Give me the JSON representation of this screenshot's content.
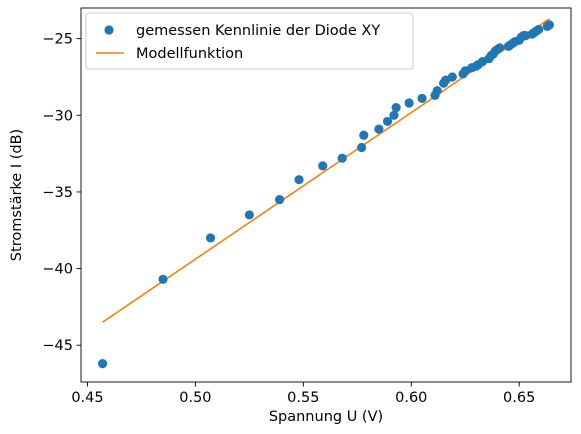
{
  "chart_data": {
    "type": "scatter",
    "xlabel": "Spannung U (V)",
    "ylabel": "Stromstärke I (dB)",
    "xlim": [
      0.447,
      0.674
    ],
    "ylim": [
      -47.4,
      -23.0
    ],
    "xticks": [
      0.45,
      0.5,
      0.55,
      0.6,
      0.65
    ],
    "xtick_labels": [
      "0.45",
      "0.50",
      "0.55",
      "0.60",
      "0.65"
    ],
    "yticks": [
      -45,
      -40,
      -35,
      -30,
      -25
    ],
    "ytick_labels": [
      "−45",
      "−40",
      "−35",
      "−30",
      "−25"
    ],
    "grid": false,
    "legend": {
      "position": "top-left"
    },
    "series": [
      {
        "name": "gemessen Kennlinie der Diode XY",
        "type": "scatter",
        "color": "#1f77b4",
        "points": [
          [
            0.457,
            -46.2
          ],
          [
            0.485,
            -40.7
          ],
          [
            0.507,
            -38.0
          ],
          [
            0.525,
            -36.5
          ],
          [
            0.539,
            -35.5
          ],
          [
            0.548,
            -34.2
          ],
          [
            0.559,
            -33.3
          ],
          [
            0.568,
            -32.8
          ],
          [
            0.577,
            -32.1
          ],
          [
            0.578,
            -31.3
          ],
          [
            0.585,
            -30.9
          ],
          [
            0.589,
            -30.4
          ],
          [
            0.592,
            -30.0
          ],
          [
            0.593,
            -29.5
          ],
          [
            0.599,
            -29.2
          ],
          [
            0.605,
            -28.9
          ],
          [
            0.611,
            -28.7
          ],
          [
            0.612,
            -28.4
          ],
          [
            0.615,
            -27.9
          ],
          [
            0.616,
            -27.7
          ],
          [
            0.619,
            -27.5
          ],
          [
            0.624,
            -27.3
          ],
          [
            0.625,
            -27.1
          ],
          [
            0.628,
            -26.9
          ],
          [
            0.63,
            -26.8
          ],
          [
            0.631,
            -26.7
          ],
          [
            0.633,
            -26.5
          ],
          [
            0.636,
            -26.3
          ],
          [
            0.637,
            -26.1
          ],
          [
            0.638,
            -26.0
          ],
          [
            0.639,
            -25.8
          ],
          [
            0.64,
            -25.7
          ],
          [
            0.641,
            -25.6
          ],
          [
            0.645,
            -25.5
          ],
          [
            0.646,
            -25.4
          ],
          [
            0.647,
            -25.3
          ],
          [
            0.648,
            -25.2
          ],
          [
            0.65,
            -25.1
          ],
          [
            0.651,
            -24.9
          ],
          [
            0.652,
            -24.8
          ],
          [
            0.653,
            -24.8
          ],
          [
            0.656,
            -24.7
          ],
          [
            0.657,
            -24.6
          ],
          [
            0.658,
            -24.5
          ],
          [
            0.659,
            -24.4
          ],
          [
            0.663,
            -24.2
          ],
          [
            0.664,
            -24.1
          ]
        ]
      },
      {
        "name": "Modellfunktion",
        "type": "line",
        "color": "#ff7f0e",
        "points": [
          [
            0.457,
            -43.5
          ],
          [
            0.664,
            -23.7
          ]
        ]
      }
    ]
  }
}
